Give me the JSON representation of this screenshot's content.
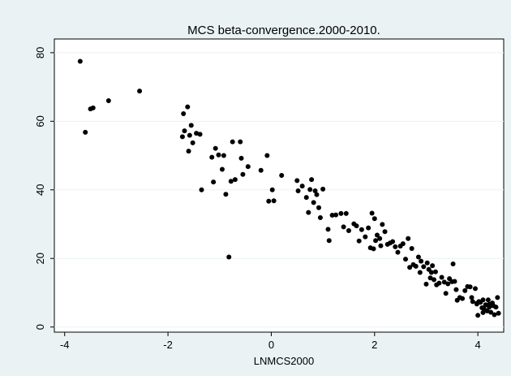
{
  "chart_data": {
    "type": "scatter",
    "title": "MCS beta-convergence.2000-2010.",
    "xlabel": "LNMCS2000",
    "ylabel": "",
    "xlim": [
      -4.2,
      4.5
    ],
    "ylim": [
      -1.5,
      84
    ],
    "xticks": [
      -4,
      -2,
      0,
      2,
      4
    ],
    "yticks": [
      0,
      20,
      40,
      60,
      80
    ],
    "grid": "horizontal",
    "colors": {
      "background": "#eaf2f3",
      "plot_area": "#ffffff",
      "marker": "#000000"
    },
    "points": [
      [
        -3.7,
        77.5
      ],
      [
        -3.6,
        56.8
      ],
      [
        -3.5,
        63.6
      ],
      [
        -3.45,
        63.9
      ],
      [
        -3.15,
        66.0
      ],
      [
        -2.55,
        68.8
      ],
      [
        -1.72,
        55.5
      ],
      [
        -1.7,
        62.2
      ],
      [
        -1.68,
        57.2
      ],
      [
        -1.62,
        64.2
      ],
      [
        -1.6,
        51.3
      ],
      [
        -1.58,
        55.9
      ],
      [
        -1.55,
        58.8
      ],
      [
        -1.52,
        53.7
      ],
      [
        -1.45,
        56.5
      ],
      [
        -1.38,
        56.2
      ],
      [
        -1.35,
        40.0
      ],
      [
        -1.15,
        49.5
      ],
      [
        -1.12,
        42.3
      ],
      [
        -1.08,
        52.1
      ],
      [
        -1.02,
        50.2
      ],
      [
        -0.95,
        46.0
      ],
      [
        -0.92,
        50.0
      ],
      [
        -0.88,
        38.7
      ],
      [
        -0.82,
        20.4
      ],
      [
        -0.78,
        42.5
      ],
      [
        -0.75,
        54.0
      ],
      [
        -0.7,
        43.0
      ],
      [
        -0.6,
        54.0
      ],
      [
        -0.58,
        49.2
      ],
      [
        -0.55,
        44.5
      ],
      [
        -0.45,
        46.8
      ],
      [
        -0.2,
        45.7
      ],
      [
        -0.08,
        50.0
      ],
      [
        -0.05,
        36.7
      ],
      [
        0.02,
        40.0
      ],
      [
        0.05,
        36.8
      ],
      [
        0.2,
        44.2
      ],
      [
        0.5,
        42.7
      ],
      [
        0.52,
        39.7
      ],
      [
        0.6,
        41.1
      ],
      [
        0.68,
        37.8
      ],
      [
        0.72,
        33.4
      ],
      [
        0.75,
        40.1
      ],
      [
        0.78,
        43.0
      ],
      [
        0.82,
        36.3
      ],
      [
        0.85,
        39.7
      ],
      [
        0.88,
        38.6
      ],
      [
        0.92,
        34.8
      ],
      [
        0.95,
        31.9
      ],
      [
        1.0,
        40.2
      ],
      [
        1.1,
        28.5
      ],
      [
        1.12,
        25.2
      ],
      [
        1.18,
        32.6
      ],
      [
        1.25,
        32.7
      ],
      [
        1.35,
        33.1
      ],
      [
        1.4,
        29.2
      ],
      [
        1.45,
        33.1
      ],
      [
        1.5,
        28.1
      ],
      [
        1.6,
        30.1
      ],
      [
        1.65,
        29.5
      ],
      [
        1.7,
        25.1
      ],
      [
        1.75,
        28.4
      ],
      [
        1.82,
        26.3
      ],
      [
        1.88,
        28.9
      ],
      [
        1.92,
        23.1
      ],
      [
        1.95,
        33.2
      ],
      [
        1.98,
        22.8
      ],
      [
        2.0,
        31.6
      ],
      [
        2.02,
        25.2
      ],
      [
        2.05,
        26.8
      ],
      [
        2.1,
        25.8
      ],
      [
        2.12,
        23.7
      ],
      [
        2.15,
        29.9
      ],
      [
        2.2,
        27.8
      ],
      [
        2.25,
        24.1
      ],
      [
        2.3,
        24.5
      ],
      [
        2.35,
        24.9
      ],
      [
        2.4,
        23.4
      ],
      [
        2.45,
        21.8
      ],
      [
        2.5,
        23.6
      ],
      [
        2.55,
        24.3
      ],
      [
        2.6,
        19.8
      ],
      [
        2.65,
        25.8
      ],
      [
        2.68,
        17.4
      ],
      [
        2.72,
        22.9
      ],
      [
        2.75,
        18.2
      ],
      [
        2.8,
        17.7
      ],
      [
        2.85,
        20.4
      ],
      [
        2.88,
        15.9
      ],
      [
        2.9,
        19.2
      ],
      [
        2.95,
        17.6
      ],
      [
        3.0,
        12.5
      ],
      [
        3.02,
        18.7
      ],
      [
        3.05,
        16.8
      ],
      [
        3.08,
        14.3
      ],
      [
        3.1,
        15.9
      ],
      [
        3.12,
        17.9
      ],
      [
        3.15,
        13.8
      ],
      [
        3.18,
        16.1
      ],
      [
        3.2,
        12.3
      ],
      [
        3.25,
        12.8
      ],
      [
        3.3,
        14.5
      ],
      [
        3.35,
        13.1
      ],
      [
        3.38,
        9.8
      ],
      [
        3.42,
        12.6
      ],
      [
        3.45,
        14.1
      ],
      [
        3.5,
        13.2
      ],
      [
        3.52,
        18.4
      ],
      [
        3.55,
        13.3
      ],
      [
        3.58,
        10.9
      ],
      [
        3.6,
        7.8
      ],
      [
        3.65,
        8.6
      ],
      [
        3.7,
        8.3
      ],
      [
        3.75,
        10.6
      ],
      [
        3.8,
        11.8
      ],
      [
        3.85,
        11.7
      ],
      [
        3.88,
        8.6
      ],
      [
        3.9,
        7.4
      ],
      [
        3.95,
        11.2
      ],
      [
        3.98,
        6.7
      ],
      [
        4.0,
        3.4
      ],
      [
        4.02,
        7.4
      ],
      [
        4.05,
        7.2
      ],
      [
        4.08,
        5.6
      ],
      [
        4.1,
        7.9
      ],
      [
        4.12,
        5.3
      ],
      [
        4.15,
        6.5
      ],
      [
        4.18,
        4.7
      ],
      [
        4.2,
        7.9
      ],
      [
        4.22,
        5.8
      ],
      [
        4.25,
        4.3
      ],
      [
        4.28,
        7.0
      ],
      [
        4.3,
        6.2
      ],
      [
        4.32,
        3.6
      ],
      [
        4.35,
        5.8
      ],
      [
        4.38,
        8.6
      ],
      [
        4.4,
        4.0
      ],
      [
        4.22,
        6.6
      ],
      [
        4.1,
        4.2
      ],
      [
        3.98,
        6.9
      ]
    ]
  }
}
